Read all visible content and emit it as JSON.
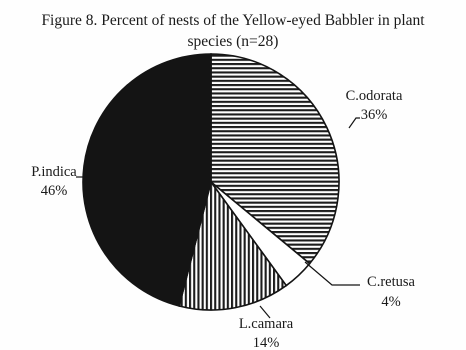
{
  "chart_data": {
    "type": "pie",
    "title_line_1": "Figure 8. Percent of nests of the Yellow-eyed Babbler in plant",
    "title_line_2": "species (n=28)",
    "slices": [
      {
        "name": "C.odorata",
        "value": 36,
        "label": "36%",
        "fill": "horizontal-stripes"
      },
      {
        "name": "C.retusa",
        "value": 4,
        "label": "4%",
        "fill": "white"
      },
      {
        "name": "L.camara",
        "value": 14,
        "label": "14%",
        "fill": "vertical-stripes"
      },
      {
        "name": "P.indica",
        "value": 46,
        "label": "46%",
        "fill": "black"
      }
    ],
    "start_angle": "12 o'clock",
    "direction": "clockwise",
    "colors": {
      "dark": "#141414",
      "stripe": "#1c1c1c",
      "background": "#ffffff"
    }
  }
}
